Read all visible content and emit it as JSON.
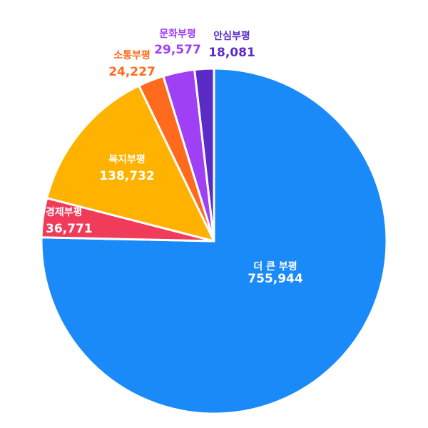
{
  "chart_data": {
    "type": "pie",
    "title": "",
    "slices": [
      {
        "label": "더 큰 부평",
        "value": 755944,
        "value_text": "755,944",
        "color": "#1a8af9",
        "label_color": "#ffffff"
      },
      {
        "label": "경제부평",
        "value": 36771,
        "value_text": "36,771",
        "color": "#f03c5a",
        "label_color": "#ffffff"
      },
      {
        "label": "복지부평",
        "value": 138732,
        "value_text": "138,732",
        "color": "#ffb300",
        "label_color": "#ffffff"
      },
      {
        "label": "소통부평",
        "value": 24227,
        "value_text": "24,227",
        "color": "#ff6a1c",
        "label_color": "#ff6a1c"
      },
      {
        "label": "문화부평",
        "value": 29577,
        "value_text": "29,577",
        "color": "#a040f5",
        "label_color": "#a040f5"
      },
      {
        "label": "안심부평",
        "value": 18081,
        "value_text": "18,081",
        "color": "#5b2bc8",
        "label_color": "#5b2bc8"
      }
    ]
  }
}
